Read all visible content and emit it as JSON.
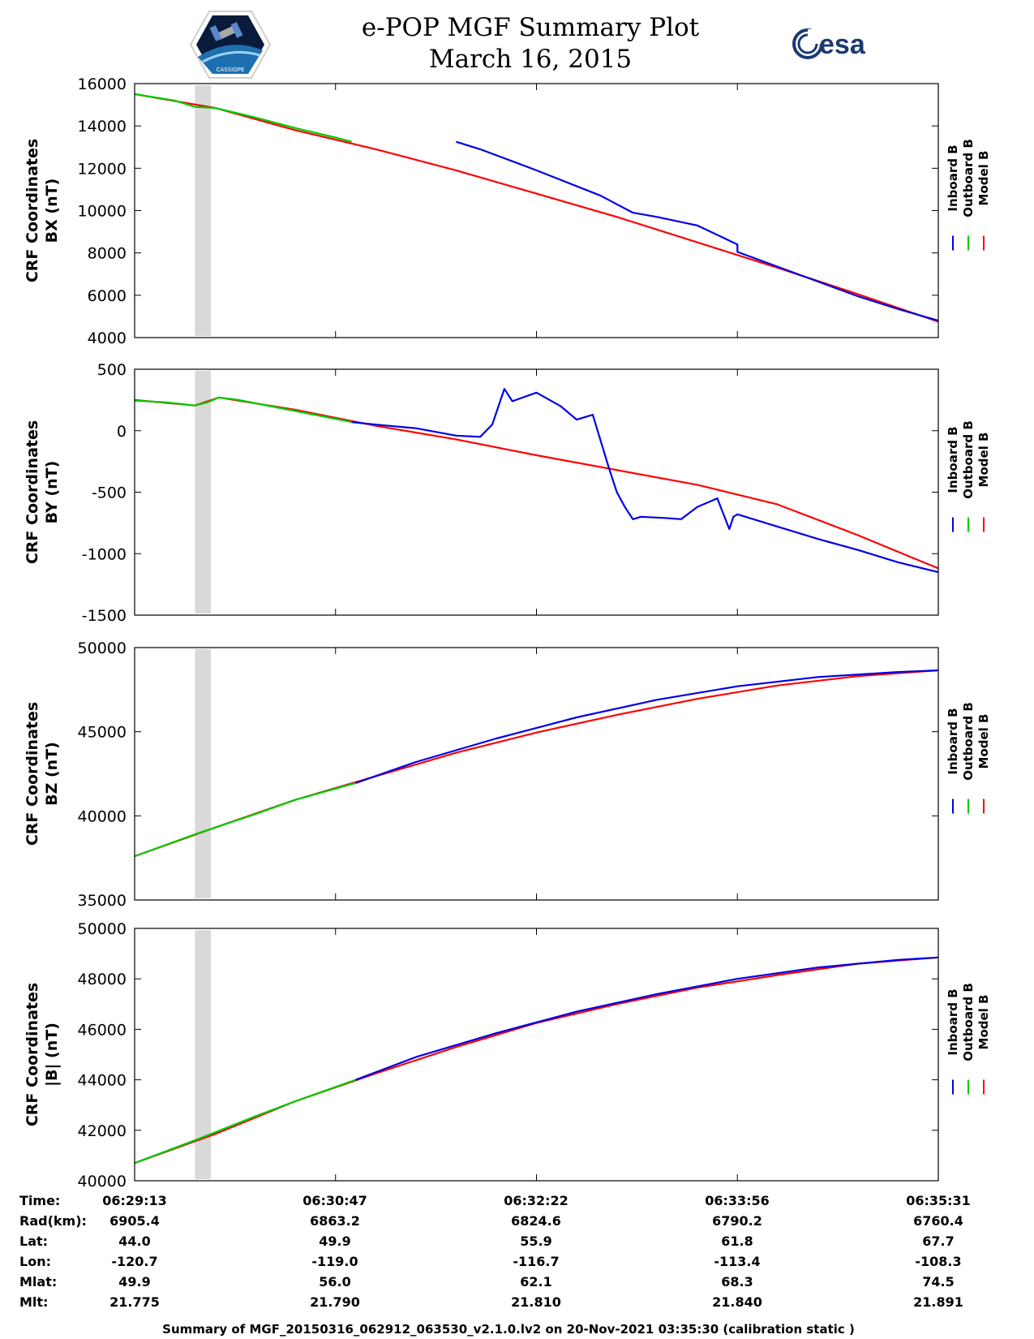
{
  "header": {
    "title": "e-POP MGF Summary Plot",
    "date": "March 16, 2015",
    "esa_logo_text": "esa",
    "cassiope_logo_text": "CASSIOPE"
  },
  "legend": {
    "labels": [
      "Inboard B",
      "Outboard B",
      "Model B"
    ],
    "colors": [
      "#0000e6",
      "#00cc00",
      "#ff0000"
    ]
  },
  "shade_color": "#d9d9d9",
  "chart_data": [
    {
      "type": "line",
      "ylabel_1": "CRF Coordinates",
      "ylabel_2": "BX (nT)",
      "ylim": [
        4000,
        16000
      ],
      "yticks": [
        4000,
        6000,
        8000,
        10000,
        12000,
        14000,
        16000
      ],
      "xlim": [
        0,
        1
      ],
      "shade": [
        0.075,
        0.095
      ],
      "series": [
        {
          "name": "Inboard B",
          "x": [
            0.4,
            0.43,
            0.5,
            0.58,
            0.6,
            0.62,
            0.65,
            0.7,
            0.75,
            0.75,
            0.8,
            0.85,
            0.9,
            0.95,
            1.0
          ],
          "y": [
            13250,
            12900,
            11900,
            10700,
            10300,
            9900,
            9700,
            9300,
            8400,
            8050,
            7350,
            6650,
            5950,
            5350,
            4800
          ]
        },
        {
          "name": "Outboard B",
          "x": [
            0.0,
            0.05,
            0.075,
            0.1,
            0.15,
            0.2,
            0.25,
            0.27
          ],
          "y": [
            15500,
            15200,
            14900,
            14850,
            14400,
            13900,
            13450,
            13250
          ]
        },
        {
          "name": "Model B",
          "x": [
            0.0,
            0.1,
            0.2,
            0.3,
            0.4,
            0.5,
            0.6,
            0.7,
            0.8,
            0.9,
            1.0
          ],
          "y": [
            15500,
            14850,
            13800,
            12900,
            11900,
            10800,
            9700,
            8500,
            7300,
            6050,
            4750
          ]
        }
      ]
    },
    {
      "type": "line",
      "ylabel_1": "CRF Coordinates",
      "ylabel_2": "BY (nT)",
      "ylim": [
        -1500,
        500
      ],
      "yticks": [
        -1500,
        -1000,
        -500,
        0,
        500
      ],
      "xlim": [
        0,
        1
      ],
      "shade": [
        0.075,
        0.095
      ],
      "series": [
        {
          "name": "Inboard B",
          "x": [
            0.27,
            0.3,
            0.35,
            0.4,
            0.43,
            0.445,
            0.46,
            0.47,
            0.5,
            0.53,
            0.55,
            0.57,
            0.59,
            0.6,
            0.61,
            0.62,
            0.63,
            0.66,
            0.68,
            0.7,
            0.725,
            0.74,
            0.745,
            0.75,
            0.76,
            0.8,
            0.85,
            0.9,
            0.95,
            1.0
          ],
          "y": [
            70,
            50,
            20,
            -40,
            -50,
            50,
            340,
            240,
            310,
            200,
            90,
            130,
            -300,
            -500,
            -620,
            -720,
            -700,
            -710,
            -720,
            -620,
            -550,
            -800,
            -700,
            -680,
            -700,
            -780,
            -880,
            -970,
            -1070,
            -1150
          ]
        },
        {
          "name": "Outboard B",
          "x": [
            0.0,
            0.04,
            0.075,
            0.09,
            0.105,
            0.13,
            0.2,
            0.27
          ],
          "y": [
            245,
            230,
            205,
            230,
            270,
            250,
            160,
            70
          ]
        },
        {
          "name": "Model B",
          "x": [
            0.0,
            0.075,
            0.105,
            0.2,
            0.3,
            0.4,
            0.5,
            0.6,
            0.7,
            0.8,
            0.9,
            1.0
          ],
          "y": [
            250,
            205,
            270,
            170,
            40,
            -70,
            -200,
            -320,
            -440,
            -600,
            -850,
            -1120
          ]
        }
      ]
    },
    {
      "type": "line",
      "ylabel_1": "CRF Coordinates",
      "ylabel_2": "BZ (nT)",
      "ylim": [
        35000,
        50000
      ],
      "yticks": [
        35000,
        40000,
        45000,
        50000
      ],
      "xlim": [
        0,
        1
      ],
      "shade": [
        0.075,
        0.095
      ],
      "series": [
        {
          "name": "Inboard B",
          "x": [
            0.275,
            0.35,
            0.45,
            0.55,
            0.65,
            0.75,
            0.85,
            0.95,
            1.0
          ],
          "y": [
            41950,
            43200,
            44600,
            45850,
            46900,
            47700,
            48250,
            48550,
            48650
          ]
        },
        {
          "name": "Outboard B",
          "x": [
            0.0,
            0.075,
            0.15,
            0.2,
            0.275
          ],
          "y": [
            37600,
            38900,
            40100,
            40950,
            41950
          ]
        },
        {
          "name": "Model B",
          "x": [
            0.0,
            0.1,
            0.2,
            0.3,
            0.4,
            0.5,
            0.6,
            0.7,
            0.8,
            0.9,
            1.0
          ],
          "y": [
            37600,
            39300,
            40950,
            42350,
            43750,
            44950,
            46000,
            46950,
            47750,
            48300,
            48650
          ]
        }
      ]
    },
    {
      "type": "line",
      "ylabel_1": "CRF Coordinates",
      "ylabel_2": "|B| (nT)",
      "ylim": [
        40000,
        50000
      ],
      "yticks": [
        40000,
        42000,
        44000,
        46000,
        48000,
        50000
      ],
      "xlim": [
        0,
        1
      ],
      "shade": [
        0.075,
        0.095
      ],
      "series": [
        {
          "name": "Inboard B",
          "x": [
            0.275,
            0.35,
            0.45,
            0.55,
            0.65,
            0.75,
            0.85,
            0.95,
            1.0
          ],
          "y": [
            44000,
            44900,
            45850,
            46700,
            47400,
            48000,
            48450,
            48750,
            48850
          ]
        },
        {
          "name": "Outboard B",
          "x": [
            0.0,
            0.075,
            0.15,
            0.2,
            0.275
          ],
          "y": [
            40700,
            41600,
            42550,
            43150,
            44000
          ]
        },
        {
          "name": "Model B",
          "x": [
            0.0,
            0.1,
            0.2,
            0.3,
            0.4,
            0.5,
            0.6,
            0.7,
            0.8,
            0.9,
            1.0
          ],
          "y": [
            40700,
            41850,
            43150,
            44250,
            45300,
            46250,
            47000,
            47650,
            48150,
            48600,
            48850
          ]
        }
      ]
    }
  ],
  "ephemeris": {
    "labels": [
      "Time:",
      "Rad(km):",
      "Lat:",
      "Lon:",
      "Mlat:",
      "Mlt:"
    ],
    "columns": [
      [
        "06:29:13",
        "6905.4",
        "44.0",
        "-120.7",
        "49.9",
        "21.775"
      ],
      [
        "06:30:47",
        "6863.2",
        "49.9",
        "-119.0",
        "56.0",
        "21.790"
      ],
      [
        "06:32:22",
        "6824.6",
        "55.9",
        "-116.7",
        "62.1",
        "21.810"
      ],
      [
        "06:33:56",
        "6790.2",
        "61.8",
        "-113.4",
        "68.3",
        "21.840"
      ],
      [
        "06:35:31",
        "6760.4",
        "67.7",
        "-108.3",
        "74.5",
        "21.891"
      ]
    ]
  },
  "footer": "Summary of MGF_20150316_062912_063530_v2.1.0.lv2 on 20-Nov-2021 03:35:30 (calibration static )"
}
